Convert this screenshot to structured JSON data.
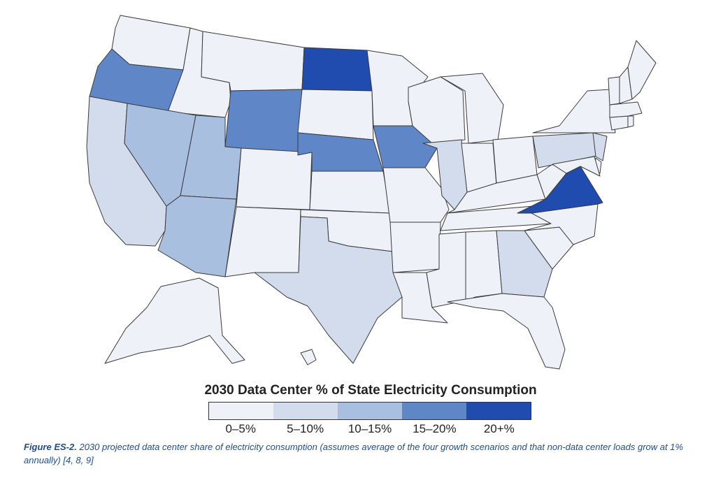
{
  "legend": {
    "title": "2030 Data Center % of State Electricity Consumption",
    "bins": [
      {
        "label": "0–5%",
        "color": "#eef1f8"
      },
      {
        "label": "5–10%",
        "color": "#d2dcec"
      },
      {
        "label": "10–15%",
        "color": "#a9bfe0"
      },
      {
        "label": "15–20%",
        "color": "#5f87c8"
      },
      {
        "label": "20+%",
        "color": "#1f4cae"
      }
    ]
  },
  "caption": {
    "figure_label": "Figure ES-2.",
    "text": " 2030 projected data center share of electricity consumption (assumes average of the four growth scenarios and that non-data center loads grow at 1% annually) [4, 8, 9]"
  },
  "map_data": {
    "states": {
      "WA": 0,
      "OR": 3,
      "CA": 1,
      "ID": 0,
      "NV": 2,
      "MT": 0,
      "WY": 3,
      "UT": 2,
      "AZ": 2,
      "CO": 0,
      "NM": 0,
      "ND": 4,
      "SD": 0,
      "NE": 3,
      "KS": 0,
      "OK": 0,
      "TX": 1,
      "MN": 0,
      "IA": 3,
      "MO": 0,
      "AR": 0,
      "LA": 0,
      "WI": 0,
      "IL": 1,
      "MI": 0,
      "IN": 0,
      "OH": 0,
      "KY": 0,
      "TN": 0,
      "MS": 0,
      "AL": 0,
      "GA": 1,
      "FL": 0,
      "SC": 0,
      "NC": 0,
      "VA": 4,
      "WV": 0,
      "PA": 1,
      "NY": 0,
      "NJ": 1,
      "DE": 0,
      "MD": 0,
      "CT": 0,
      "RI": 0,
      "MA": 0,
      "VT": 0,
      "NH": 0,
      "ME": 0,
      "AK": 0,
      "HI": 0
    }
  }
}
